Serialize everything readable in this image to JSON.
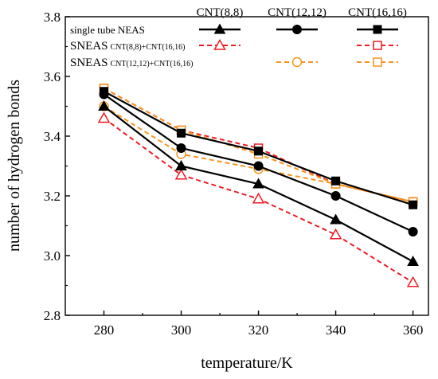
{
  "chart_data": {
    "type": "line",
    "title": "",
    "xlabel": "temperature/K",
    "ylabel": "number of hydrogen bonds",
    "x": [
      280,
      300,
      320,
      340,
      360
    ],
    "xlim": [
      270,
      364
    ],
    "ylim": [
      2.8,
      3.8
    ],
    "xticks": [
      280,
      300,
      320,
      340,
      360
    ],
    "yticks": [
      2.8,
      3.0,
      3.2,
      3.4,
      3.6,
      3.8
    ],
    "xtick_labels": [
      "280",
      "300",
      "320",
      "340",
      "360"
    ],
    "ytick_labels": [
      "2.8",
      "3.0",
      "3.2",
      "3.4",
      "3.6",
      "3.8"
    ],
    "grid": false,
    "legend_position": "top",
    "legend": {
      "columns": [
        "CNT(8,8)",
        "CNT(12,12)",
        "CNT(16,16)"
      ],
      "rows": [
        {
          "main": "single tube NEAS",
          "sub": ""
        },
        {
          "main": "SNEAS",
          "sub": "CNT(8,8)+CNT(16,16)"
        },
        {
          "main": "SNEAS",
          "sub": "CNT(12,12)+CNT(16,16)"
        }
      ]
    },
    "series": [
      {
        "key": "neas_8",
        "row": 0,
        "col": 0,
        "color": "#000000",
        "marker": "triangle",
        "filled": true,
        "dashed": false,
        "values": [
          3.5,
          3.3,
          3.24,
          3.12,
          2.98
        ]
      },
      {
        "key": "neas_12",
        "row": 0,
        "col": 1,
        "color": "#000000",
        "marker": "circle",
        "filled": true,
        "dashed": false,
        "values": [
          3.54,
          3.36,
          3.3,
          3.2,
          3.08
        ]
      },
      {
        "key": "neas_16",
        "row": 0,
        "col": 2,
        "color": "#000000",
        "marker": "square",
        "filled": true,
        "dashed": false,
        "values": [
          3.55,
          3.41,
          3.35,
          3.25,
          3.17
        ]
      },
      {
        "key": "sneas_8_16_a",
        "row": 1,
        "col": 0,
        "color": "#ee1c25",
        "marker": "triangle",
        "filled": false,
        "dashed": true,
        "values": [
          3.46,
          3.27,
          3.19,
          3.07,
          2.91
        ]
      },
      {
        "key": "sneas_8_16_b",
        "row": 1,
        "col": 2,
        "color": "#ee1c25",
        "marker": "square",
        "filled": false,
        "dashed": true,
        "values": [
          3.56,
          3.42,
          3.36,
          3.24,
          3.18
        ]
      },
      {
        "key": "sneas_12_16_a",
        "row": 2,
        "col": 1,
        "color": "#f7941d",
        "marker": "circle",
        "filled": false,
        "dashed": true,
        "values": [
          3.5,
          3.34,
          3.29,
          3.24,
          3.18
        ]
      },
      {
        "key": "sneas_12_16_b",
        "row": 2,
        "col": 2,
        "color": "#f7941d",
        "marker": "square",
        "filled": false,
        "dashed": true,
        "values": [
          3.56,
          3.42,
          3.34,
          3.24,
          3.18
        ]
      }
    ]
  }
}
